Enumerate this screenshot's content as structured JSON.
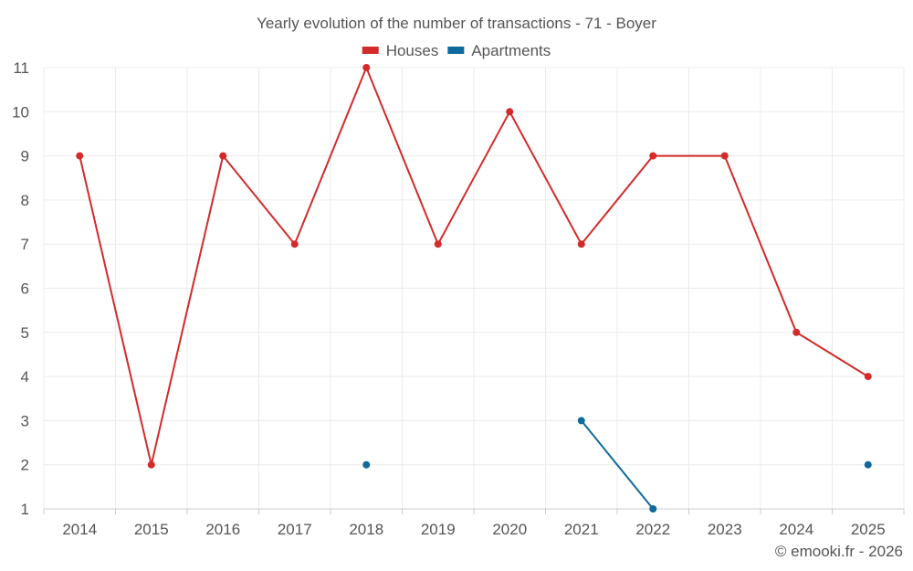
{
  "chart_data": {
    "type": "line",
    "title": "Yearly evolution of the number of transactions - 71 - Boyer",
    "categories": [
      "2014",
      "2015",
      "2016",
      "2017",
      "2018",
      "2019",
      "2020",
      "2021",
      "2022",
      "2023",
      "2024",
      "2025"
    ],
    "series": [
      {
        "name": "Houses",
        "color": "#d42a2a",
        "values": [
          9,
          2,
          9,
          7,
          11,
          7,
          10,
          7,
          9,
          9,
          5,
          4
        ]
      },
      {
        "name": "Apartments",
        "color": "#0e6a9c",
        "values": [
          null,
          null,
          null,
          null,
          2,
          null,
          null,
          3,
          1,
          null,
          null,
          2
        ]
      }
    ],
    "ylim": [
      1,
      11
    ],
    "yticks": [
      "1",
      "2",
      "3",
      "4",
      "5",
      "6",
      "7",
      "8",
      "9",
      "10",
      "11"
    ],
    "xlabel": "",
    "ylabel": "",
    "grid": true,
    "legend": "top-center"
  },
  "credit": "© emooki.fr - 2026"
}
